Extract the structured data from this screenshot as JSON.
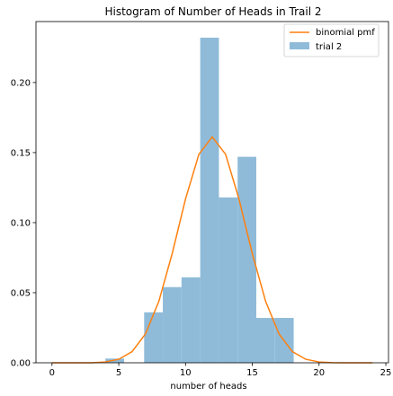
{
  "chart_data": {
    "type": "bar",
    "title": "Histogram of Number of Heads in Trail 2",
    "xlabel": "number of heads",
    "ylabel": "",
    "xlim": [
      -1.2,
      25.2
    ],
    "ylim": [
      0,
      0.2435
    ],
    "xticks": [
      0,
      5,
      10,
      15,
      20,
      25
    ],
    "yticks": [
      0.0,
      0.05,
      0.1,
      0.15,
      0.2
    ],
    "grid": false,
    "legend_position": "top-right",
    "histogram": {
      "name": "trial 2",
      "color": "#8fbbd9",
      "bins": [
        {
          "x0": 4.0,
          "x1": 5.4,
          "value": 0.003
        },
        {
          "x0": 6.9,
          "x1": 8.3,
          "value": 0.036
        },
        {
          "x0": 8.3,
          "x1": 9.7,
          "value": 0.054
        },
        {
          "x0": 9.7,
          "x1": 11.1,
          "value": 0.061
        },
        {
          "x0": 11.1,
          "x1": 12.5,
          "value": 0.232
        },
        {
          "x0": 12.5,
          "x1": 13.9,
          "value": 0.118
        },
        {
          "x0": 13.9,
          "x1": 15.3,
          "value": 0.147
        },
        {
          "x0": 15.3,
          "x1": 16.7,
          "value": 0.032
        },
        {
          "x0": 16.7,
          "x1": 18.1,
          "value": 0.032
        }
      ]
    },
    "line": {
      "name": "binomial pmf",
      "color": "#ff7f0e",
      "x": [
        0,
        1,
        2,
        3,
        4,
        5,
        6,
        7,
        8,
        9,
        10,
        11,
        12,
        13,
        14,
        15,
        16,
        17,
        18,
        19,
        20,
        21,
        22,
        23,
        24
      ],
      "y": [
        0.0,
        0.0,
        0.0,
        0.0,
        0.0006,
        0.0025,
        0.008,
        0.0206,
        0.0438,
        0.0779,
        0.1169,
        0.1488,
        0.1612,
        0.1488,
        0.1169,
        0.0779,
        0.0438,
        0.0206,
        0.008,
        0.0025,
        0.0006,
        0.0001,
        0.0,
        0.0,
        0.0
      ]
    }
  }
}
